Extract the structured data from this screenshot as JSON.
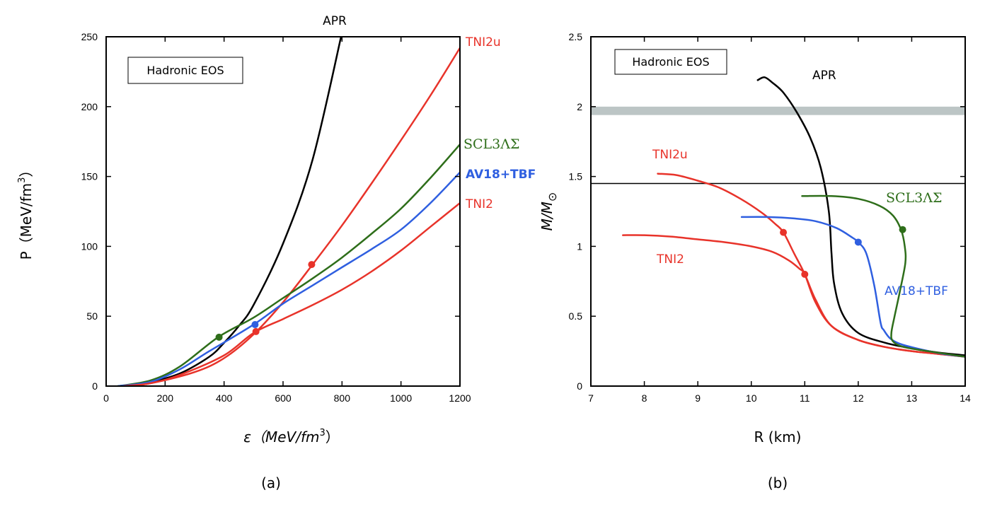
{
  "colors": {
    "APR": "#000000",
    "TNI2u": "#e8332a",
    "TNI2": "#e8332a",
    "SCL3": "#2e6e1a",
    "AV18": "#2f5fe0",
    "band": "#bcc5c5"
  },
  "chart_data": [
    {
      "type": "line",
      "panel": "a",
      "caption": "(a)",
      "title": "APR",
      "legend_box": "Hadronic EOS",
      "xlabel": "ε（MeV/fm",
      "xlabel_sup": "3",
      "xlabel_end": "）",
      "ylabel": "P（MeV/fm",
      "ylabel_sup": "3",
      "ylabel_end": "）",
      "xlim": [
        0,
        1200
      ],
      "ylim": [
        0,
        250
      ],
      "xticks": [
        "0",
        "200",
        "400",
        "600",
        "800",
        "1000",
        "1200"
      ],
      "yticks": [
        "0",
        "50",
        "100",
        "150",
        "200",
        "250"
      ],
      "series": [
        {
          "name": "APR",
          "color": "#000000",
          "x": [
            60,
            150,
            250,
            350,
            400,
            450,
            500,
            600,
            700,
            800
          ],
          "y": [
            0,
            3,
            9,
            21,
            31,
            43,
            58,
            102,
            162,
            253
          ]
        },
        {
          "name": "TNI2u",
          "label": "TNI2u",
          "color": "#e8332a",
          "x": [
            60,
            150,
            300,
            400,
            500,
            600,
            700,
            800,
            900,
            1000,
            1100,
            1200
          ],
          "y": [
            0,
            2,
            10,
            20,
            37,
            60,
            87,
            115,
            145,
            176,
            208,
            242
          ]
        },
        {
          "name": "SCL3ΛΣ",
          "label": "SCL3ΛΣ",
          "color": "#2e6e1a",
          "x": [
            40,
            150,
            250,
            380,
            500,
            600,
            700,
            800,
            900,
            1000,
            1100,
            1200
          ],
          "y": [
            0,
            4,
            14,
            35,
            49,
            63,
            77,
            92,
            109,
            127,
            149,
            173
          ]
        },
        {
          "name": "AV18+TBF",
          "label": "AV18+TBF",
          "color": "#2f5fe0",
          "x": [
            40,
            150,
            250,
            350,
            500,
            600,
            700,
            800,
            900,
            1000,
            1100,
            1200
          ],
          "y": [
            0,
            3,
            12,
            25,
            44,
            59,
            72,
            85,
            98,
            112,
            131,
            153
          ]
        },
        {
          "name": "TNI2",
          "label": "TNI2",
          "color": "#e8332a",
          "x": [
            60,
            150,
            250,
            400,
            500,
            600,
            700,
            800,
            900,
            1000,
            1100,
            1200
          ],
          "y": [
            0,
            2,
            8,
            22,
            38,
            48,
            58,
            69,
            82,
            97,
            114,
            131
          ]
        }
      ],
      "markers": [
        {
          "series": "SCL3ΛΣ",
          "x": 383,
          "y": 35,
          "color": "#2e6e1a"
        },
        {
          "series": "AV18+TBF",
          "x": 505,
          "y": 44,
          "color": "#2f5fe0"
        },
        {
          "series": "TNI2",
          "x": 508,
          "y": 39,
          "color": "#e8332a"
        },
        {
          "series": "TNI2u",
          "x": 697,
          "y": 87,
          "color": "#e8332a"
        }
      ]
    },
    {
      "type": "line",
      "panel": "b",
      "caption": "(b)",
      "legend_box": "Hadronic EOS",
      "xlabel": "R (km)",
      "ylabel": "M/M",
      "ylabel_sub": "⊙",
      "xlim": [
        7,
        14
      ],
      "ylim": [
        0,
        2.5
      ],
      "xticks": [
        "7",
        "8",
        "9",
        "10",
        "11",
        "12",
        "13",
        "14"
      ],
      "yticks": [
        "0",
        "0.5",
        "1",
        "1.5",
        "2",
        "2.5"
      ],
      "band": {
        "y_low": 1.94,
        "y_high": 2.0
      },
      "hline": 1.45,
      "series": [
        {
          "name": "APR",
          "label": "APR",
          "color": "#000000",
          "x": [
            10.12,
            10.25,
            10.4,
            10.6,
            10.85,
            11.1,
            11.3,
            11.45,
            11.5,
            11.55,
            11.7,
            12.0,
            12.5,
            13.0,
            13.5,
            14.0
          ],
          "y": [
            2.19,
            2.21,
            2.17,
            2.1,
            1.96,
            1.78,
            1.56,
            1.25,
            0.95,
            0.73,
            0.52,
            0.38,
            0.31,
            0.27,
            0.24,
            0.22
          ]
        },
        {
          "name": "TNI2u",
          "label": "TNI2u",
          "color": "#e8332a",
          "x": [
            8.25,
            8.6,
            9.0,
            9.4,
            9.8,
            10.2,
            10.45,
            10.6,
            10.8,
            11.0,
            11.2,
            11.5,
            12.0,
            12.5,
            13.0,
            13.5,
            14.0
          ],
          "y": [
            1.52,
            1.51,
            1.47,
            1.42,
            1.34,
            1.24,
            1.16,
            1.1,
            0.95,
            0.8,
            0.6,
            0.43,
            0.33,
            0.28,
            0.25,
            0.23,
            0.21
          ]
        },
        {
          "name": "TNI2",
          "label": "TNI2",
          "color": "#e8332a",
          "x": [
            7.6,
            8.0,
            8.5,
            9.0,
            9.5,
            10.0,
            10.4,
            10.7,
            10.9,
            11.0,
            11.2,
            11.5,
            12.0,
            12.5,
            13.0,
            13.5,
            14.0
          ],
          "y": [
            1.08,
            1.08,
            1.07,
            1.05,
            1.03,
            1.0,
            0.96,
            0.9,
            0.84,
            0.8,
            0.62,
            0.43,
            0.33,
            0.28,
            0.25,
            0.23,
            0.21
          ]
        },
        {
          "name": "AV18+TBF",
          "label": "AV18+TBF",
          "color": "#2f5fe0",
          "x": [
            9.82,
            10.3,
            10.8,
            11.2,
            11.6,
            11.9,
            12.0,
            12.15,
            12.3,
            12.42,
            12.48,
            12.6,
            12.8,
            13.2,
            13.6,
            14.0
          ],
          "y": [
            1.21,
            1.21,
            1.2,
            1.18,
            1.13,
            1.06,
            1.03,
            0.95,
            0.72,
            0.45,
            0.4,
            0.34,
            0.3,
            0.26,
            0.23,
            0.21
          ]
        },
        {
          "name": "SCL3ΛΣ",
          "label": "SCL3ΛΣ",
          "color": "#2e6e1a",
          "x": [
            10.95,
            11.5,
            12.0,
            12.4,
            12.65,
            12.8,
            12.87,
            12.88,
            12.78,
            12.68,
            12.62,
            12.65,
            12.85,
            13.3,
            14.0
          ],
          "y": [
            1.36,
            1.36,
            1.34,
            1.29,
            1.22,
            1.12,
            1.0,
            0.88,
            0.68,
            0.5,
            0.38,
            0.32,
            0.28,
            0.25,
            0.21
          ]
        }
      ],
      "markers": [
        {
          "series": "TNI2u",
          "x": 10.6,
          "y": 1.1,
          "color": "#e8332a"
        },
        {
          "series": "TNI2",
          "x": 11.0,
          "y": 0.8,
          "color": "#e8332a"
        },
        {
          "series": "AV18+TBF",
          "x": 12.0,
          "y": 1.03,
          "color": "#2f5fe0"
        },
        {
          "series": "SCL3ΛΣ",
          "x": 12.83,
          "y": 1.12,
          "color": "#2e6e1a"
        }
      ]
    }
  ]
}
